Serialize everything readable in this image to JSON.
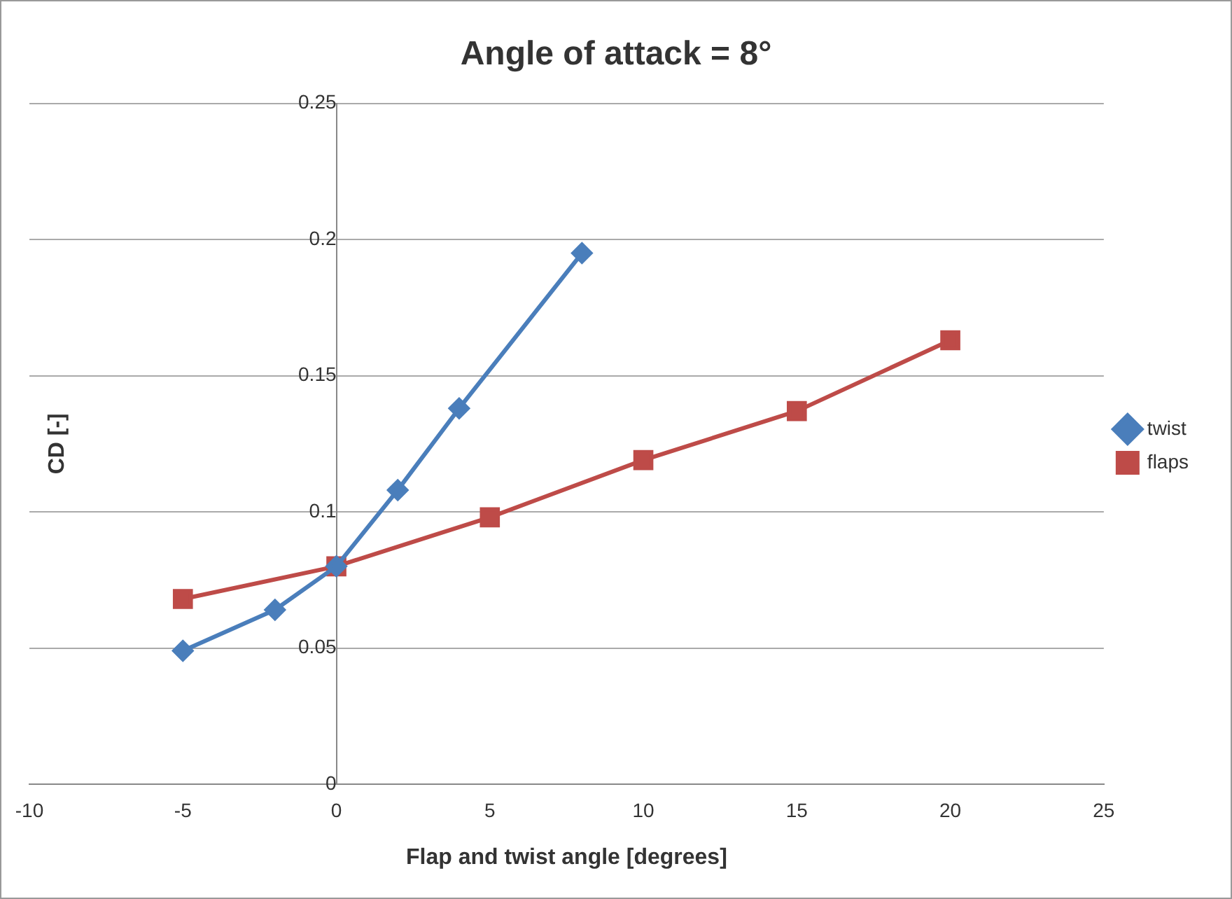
{
  "chart_data": {
    "type": "line",
    "title": "Angle of attack = 8°",
    "xlabel": "Flap and twist angle [degrees]",
    "ylabel": "CD [-]",
    "xlim": [
      -10,
      25
    ],
    "xticks": [
      -10,
      -5,
      0,
      5,
      10,
      15,
      20,
      25
    ],
    "ylim": [
      0,
      0.25
    ],
    "yticks": [
      0,
      0.05,
      0.1,
      0.15,
      0.2,
      0.25
    ],
    "grid": "y",
    "legend": "right",
    "line_style": "solid",
    "series": [
      {
        "name": "twist",
        "color": "#4a7ebb",
        "marker": "diamond",
        "x": [
          -5,
          -2,
          0,
          2,
          4,
          8
        ],
        "values": [
          0.049,
          0.064,
          0.08,
          0.108,
          0.138,
          0.195
        ]
      },
      {
        "name": "flaps",
        "color": "#be4b48",
        "marker": "square",
        "x": [
          -5,
          0,
          5,
          10,
          15,
          20
        ],
        "values": [
          0.068,
          0.08,
          0.098,
          0.119,
          0.137,
          0.163
        ]
      }
    ]
  }
}
